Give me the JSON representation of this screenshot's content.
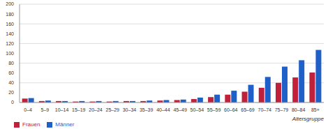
{
  "chart_data": {
    "type": "bar",
    "x_label": "Altersgruppe",
    "categories": [
      "0–4",
      "5–9",
      "10–14",
      "15–19",
      "20–24",
      "25–29",
      "30–34",
      "35–39",
      "40–44",
      "45–49",
      "50–54",
      "55–59",
      "60–64",
      "65–69",
      "70–74",
      "75–79",
      "80–84",
      "85+"
    ],
    "series": [
      {
        "name": "Frauen",
        "color": "#c0203a",
        "values": [
          8,
          3,
          3,
          2,
          2,
          2,
          3,
          3,
          4,
          5,
          7,
          11,
          16,
          22,
          30,
          40,
          51,
          61
        ]
      },
      {
        "name": "Männer",
        "color": "#1f5fc8",
        "values": [
          9,
          4,
          3,
          3,
          3,
          3,
          3,
          4,
          5,
          6,
          10,
          16,
          24,
          36,
          52,
          73,
          86,
          107
        ]
      }
    ],
    "ylim": [
      0,
      200
    ],
    "yticks": [
      0,
      20,
      40,
      60,
      80,
      100,
      120,
      140,
      160,
      180,
      200
    ],
    "grid": true,
    "legend": "bottom-left"
  }
}
